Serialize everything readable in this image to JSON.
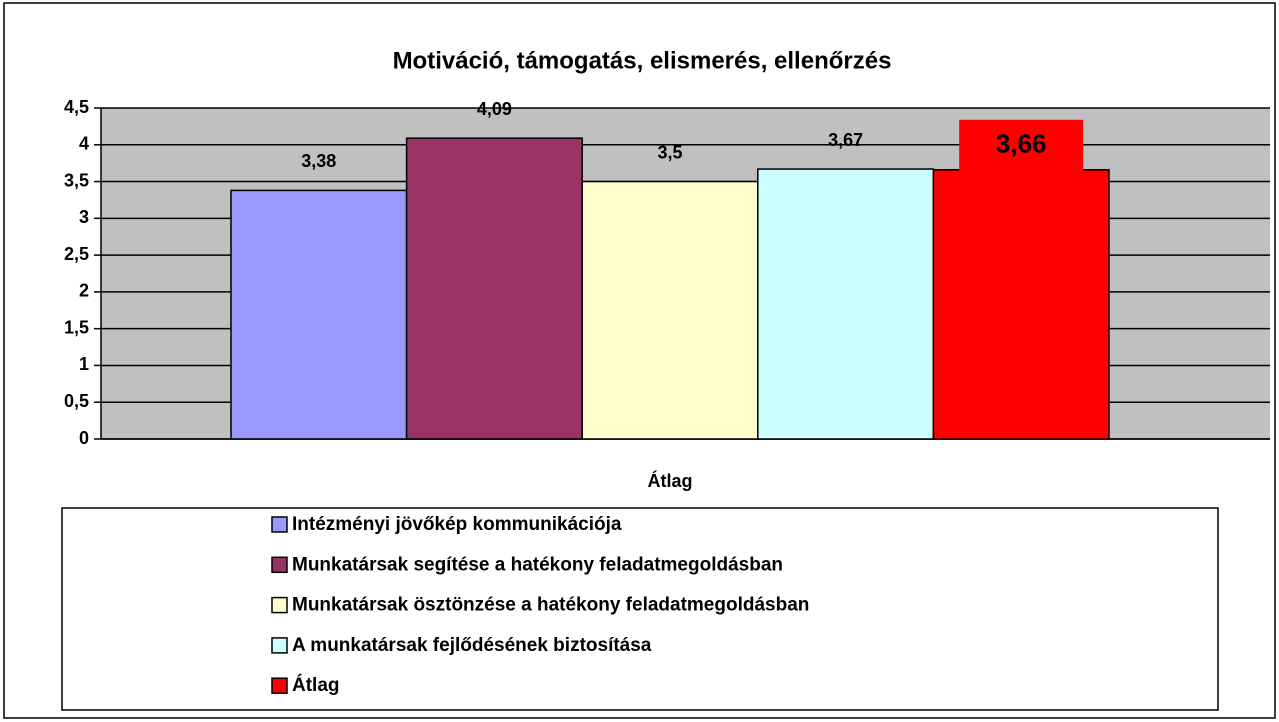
{
  "chart_data": {
    "type": "bar",
    "title": "Motiváció, támogatás, elismerés, ellenőrzés",
    "categories": [
      "Átlag"
    ],
    "series": [
      {
        "name": "Intézményi jövőkép kommunikációja",
        "color": "#9999ff",
        "values": [
          3.38
        ],
        "value_labels": [
          "3,38"
        ]
      },
      {
        "name": "Munkatársak segítése a hatékony feladatmegoldásban",
        "color": "#993366",
        "values": [
          4.09
        ],
        "value_labels": [
          "4,09"
        ]
      },
      {
        "name": "Munkatársak ösztönzése a hatékony feladatmegoldásban",
        "color": "#ffffcc",
        "values": [
          3.5
        ],
        "value_labels": [
          "3,5"
        ]
      },
      {
        "name": "A munkatársak fejlődésének biztosítása",
        "color": "#ccffff",
        "values": [
          3.67
        ],
        "value_labels": [
          "3,67"
        ]
      },
      {
        "name": "Átlag",
        "color": "#ff0000",
        "values": [
          3.66
        ],
        "value_labels": [
          "3,66"
        ]
      }
    ],
    "ylim": [
      0,
      4.5
    ],
    "yticks": [
      0,
      {
        "value": 0.5,
        "label": "0,5"
      },
      1,
      {
        "value": 1.5,
        "label": "1,5"
      },
      2,
      {
        "value": 2.5,
        "label": "2,5"
      },
      3,
      {
        "value": 3.5,
        "label": "3,5"
      },
      4,
      {
        "value": 4.5,
        "label": "4,5"
      }
    ],
    "grid": true
  }
}
